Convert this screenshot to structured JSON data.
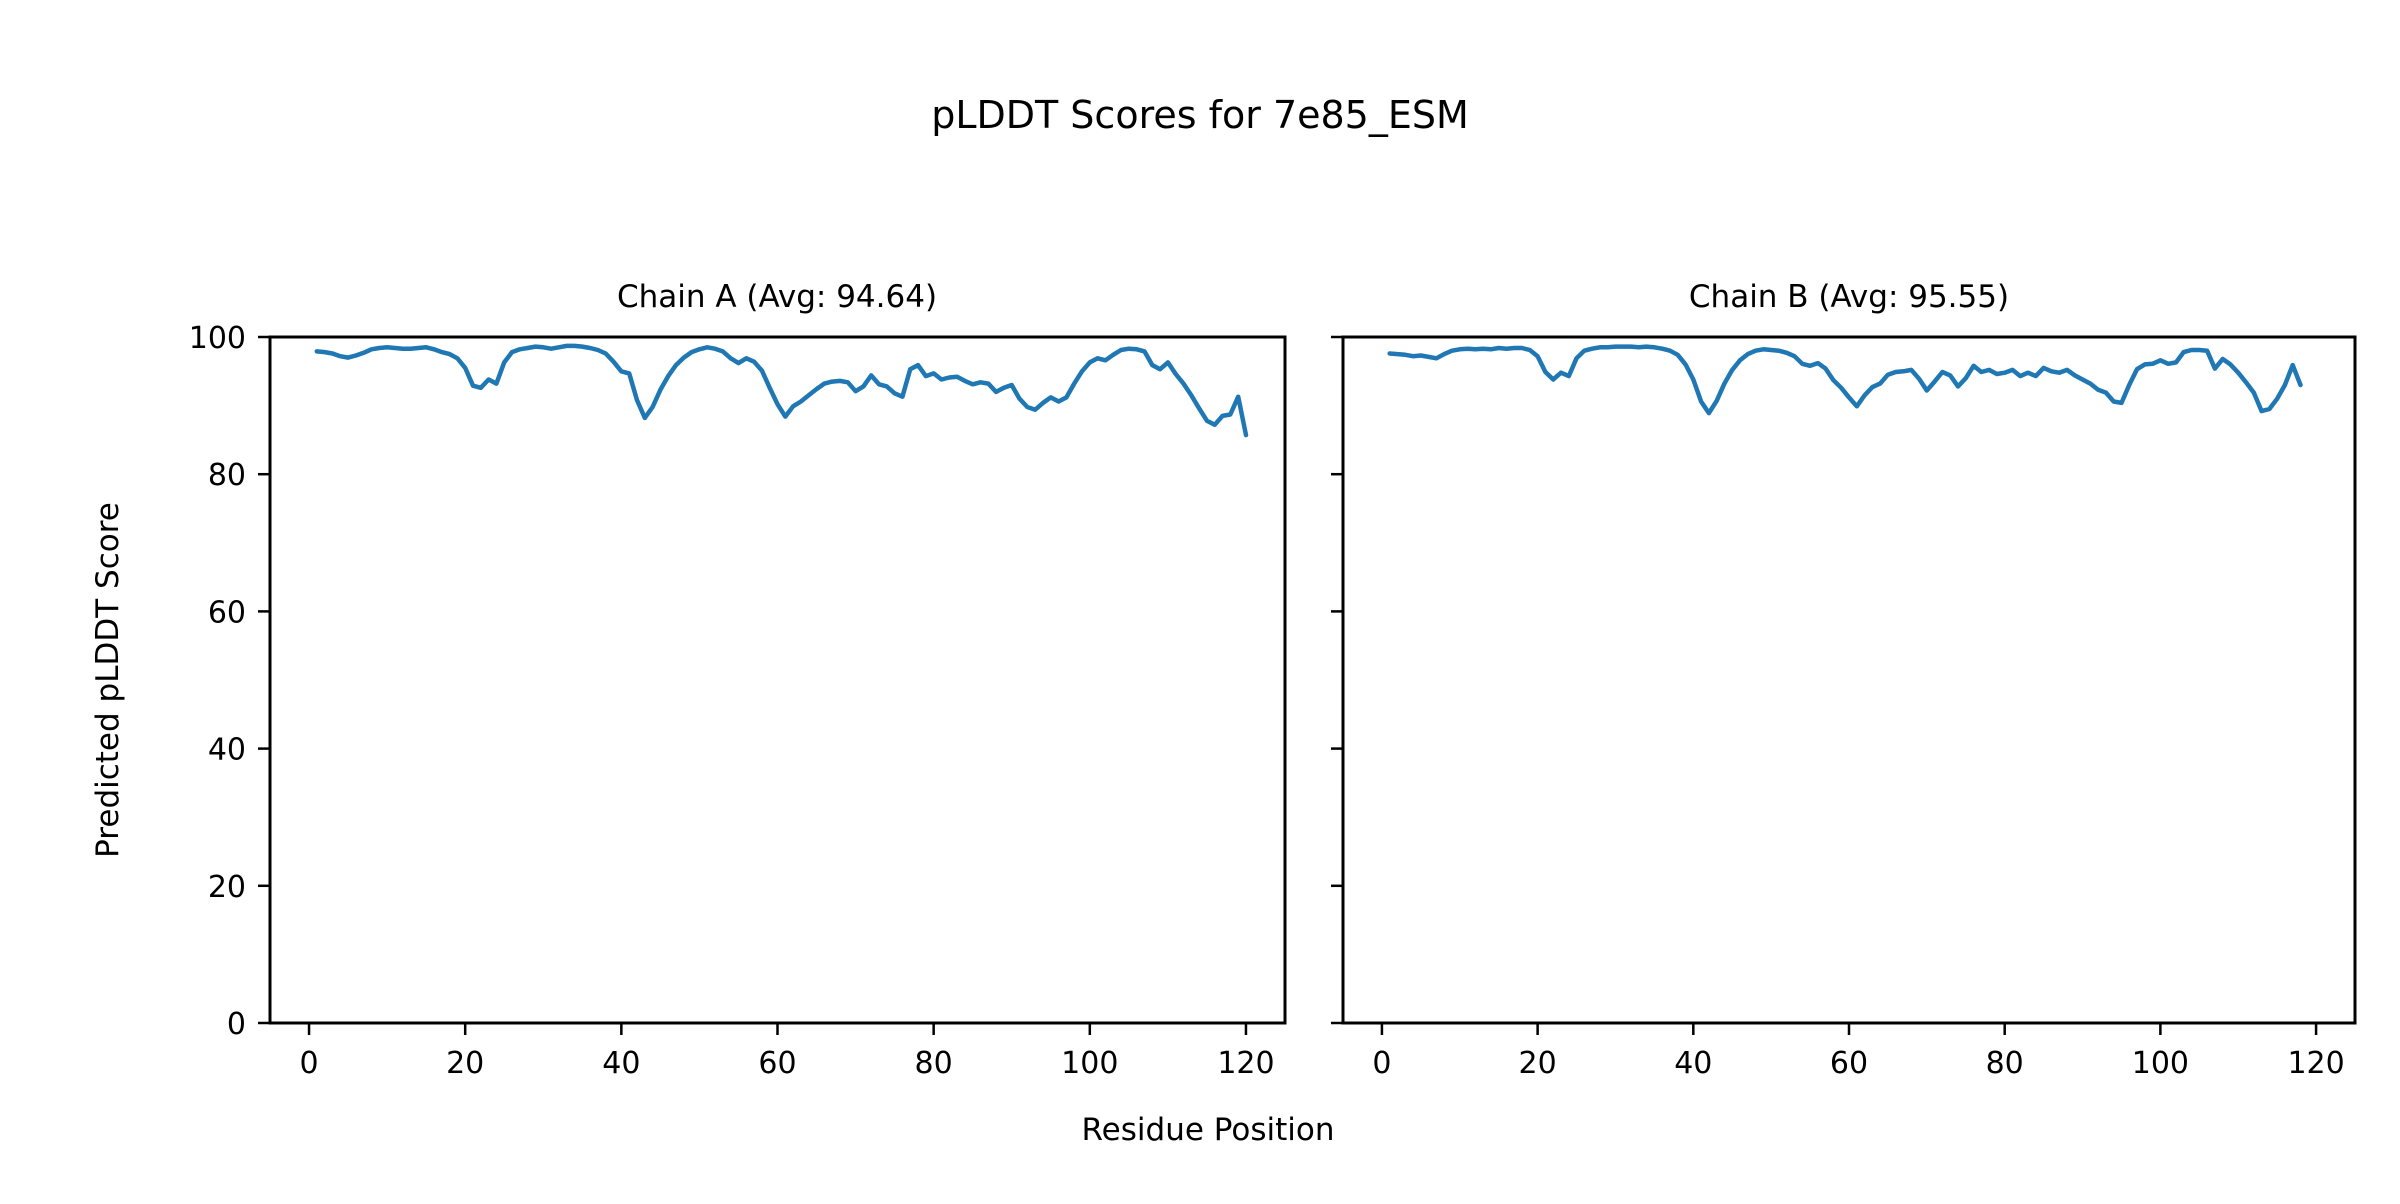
{
  "figure": {
    "title": "pLDDT Scores for 7e85_ESM",
    "xlabel": "Residue Position",
    "ylabel": "Predicted pLDDT Score"
  },
  "chart_data": [
    {
      "type": "line",
      "title": "Chain A (Avg: 94.64)",
      "chain": "A",
      "average": 94.64,
      "line_color": "#1f77b4",
      "xlim": [
        -5,
        125
      ],
      "ylim": [
        0,
        100
      ],
      "xticks": [
        0,
        20,
        40,
        60,
        80,
        100,
        120
      ],
      "yticks": [
        0,
        20,
        40,
        60,
        80,
        100
      ],
      "show_ytick_labels": true,
      "x_start": 1,
      "values": [
        97.9,
        97.8,
        97.6,
        97.2,
        97.0,
        97.3,
        97.7,
        98.2,
        98.4,
        98.5,
        98.4,
        98.3,
        98.3,
        98.4,
        98.5,
        98.2,
        97.8,
        97.5,
        96.9,
        95.5,
        92.9,
        92.6,
        93.8,
        93.2,
        96.3,
        97.8,
        98.2,
        98.4,
        98.6,
        98.5,
        98.3,
        98.5,
        98.7,
        98.7,
        98.6,
        98.4,
        98.1,
        97.6,
        96.4,
        95.0,
        94.7,
        90.8,
        88.2,
        89.8,
        92.3,
        94.3,
        95.9,
        97.0,
        97.8,
        98.2,
        98.5,
        98.3,
        97.9,
        96.9,
        96.2,
        96.9,
        96.4,
        95.1,
        92.6,
        90.2,
        88.4,
        89.9,
        90.6,
        91.5,
        92.4,
        93.2,
        93.5,
        93.6,
        93.4,
        92.1,
        92.8,
        94.4,
        93.1,
        92.8,
        91.8,
        91.3,
        95.3,
        95.9,
        94.3,
        94.7,
        93.8,
        94.1,
        94.2,
        93.6,
        93.1,
        93.4,
        93.2,
        92.0,
        92.6,
        93.0,
        91.0,
        89.8,
        89.4,
        90.4,
        91.2,
        90.6,
        91.2,
        93.2,
        95.0,
        96.3,
        96.9,
        96.6,
        97.4,
        98.1,
        98.3,
        98.2,
        97.9,
        95.9,
        95.3,
        96.3,
        94.6,
        93.2,
        91.5,
        89.6,
        87.8,
        87.2,
        88.5,
        88.7,
        91.3,
        85.7
      ]
    },
    {
      "type": "line",
      "title": "Chain B (Avg: 95.55)",
      "chain": "B",
      "average": 95.55,
      "line_color": "#1f77b4",
      "xlim": [
        -5,
        125
      ],
      "ylim": [
        0,
        100
      ],
      "xticks": [
        0,
        20,
        40,
        60,
        80,
        100,
        120
      ],
      "yticks": [
        0,
        20,
        40,
        60,
        80,
        100
      ],
      "show_ytick_labels": false,
      "x_start": 1,
      "values": [
        97.6,
        97.5,
        97.4,
        97.2,
        97.3,
        97.1,
        96.9,
        97.5,
        98.0,
        98.2,
        98.3,
        98.2,
        98.3,
        98.2,
        98.4,
        98.3,
        98.4,
        98.4,
        98.1,
        97.2,
        94.9,
        93.8,
        94.8,
        94.3,
        96.9,
        98.0,
        98.3,
        98.5,
        98.5,
        98.6,
        98.6,
        98.6,
        98.5,
        98.6,
        98.5,
        98.3,
        98.0,
        97.4,
        96.0,
        93.8,
        90.6,
        88.9,
        90.7,
        93.2,
        95.2,
        96.6,
        97.5,
        98.0,
        98.2,
        98.1,
        98.0,
        97.7,
        97.2,
        96.1,
        95.8,
        96.2,
        95.4,
        93.7,
        92.6,
        91.2,
        89.9,
        91.5,
        92.7,
        93.2,
        94.5,
        94.9,
        95.0,
        95.2,
        93.9,
        92.2,
        93.5,
        94.9,
        94.4,
        92.8,
        94.0,
        95.8,
        94.9,
        95.2,
        94.6,
        94.8,
        95.2,
        94.3,
        94.8,
        94.3,
        95.5,
        95.0,
        94.8,
        95.2,
        94.4,
        93.8,
        93.2,
        92.3,
        91.9,
        90.6,
        90.4,
        93.0,
        95.3,
        96.0,
        96.1,
        96.6,
        96.1,
        96.3,
        97.8,
        98.1,
        98.1,
        98.0,
        95.4,
        96.8,
        96.0,
        94.8,
        93.4,
        91.9,
        89.2,
        89.5,
        91.0,
        93.0,
        95.9,
        93.0
      ]
    }
  ]
}
